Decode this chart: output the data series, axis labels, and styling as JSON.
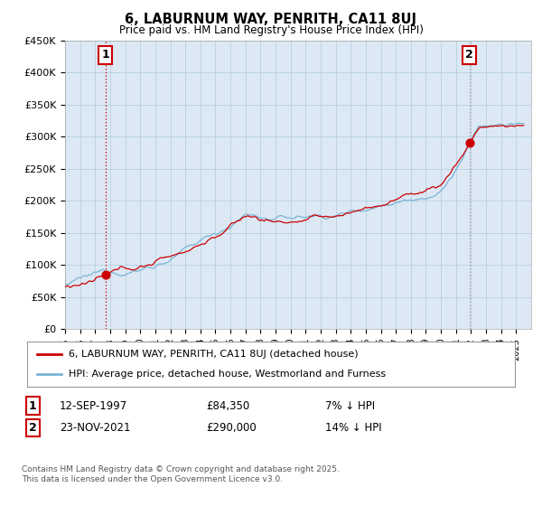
{
  "title": "6, LABURNUM WAY, PENRITH, CA11 8UJ",
  "subtitle": "Price paid vs. HM Land Registry's House Price Index (HPI)",
  "ylim": [
    0,
    450000
  ],
  "yticks": [
    0,
    50000,
    100000,
    150000,
    200000,
    250000,
    300000,
    350000,
    400000,
    450000
  ],
  "ytick_labels": [
    "£0",
    "£50K",
    "£100K",
    "£150K",
    "£200K",
    "£250K",
    "£300K",
    "£350K",
    "£400K",
    "£450K"
  ],
  "xlim_start": 1995.0,
  "xlim_end": 2026.0,
  "hpi_color": "#7ab3d4",
  "price_color": "#cc0000",
  "sale1_date": 1997.7,
  "sale1_price": 84350,
  "sale2_date": 2021.9,
  "sale2_price": 290000,
  "legend_entry1": "6, LABURNUM WAY, PENRITH, CA11 8UJ (detached house)",
  "legend_entry2": "HPI: Average price, detached house, Westmorland and Furness",
  "annotation1_date": "12-SEP-1997",
  "annotation1_price": "£84,350",
  "annotation1_hpi": "7% ↓ HPI",
  "annotation2_date": "23-NOV-2021",
  "annotation2_price": "£290,000",
  "annotation2_hpi": "14% ↓ HPI",
  "footer": "Contains HM Land Registry data © Crown copyright and database right 2025.\nThis data is licensed under the Open Government Licence v3.0.",
  "chart_bg": "#dce9f5",
  "background_color": "#ffffff",
  "grid_color": "#b8cfe0"
}
